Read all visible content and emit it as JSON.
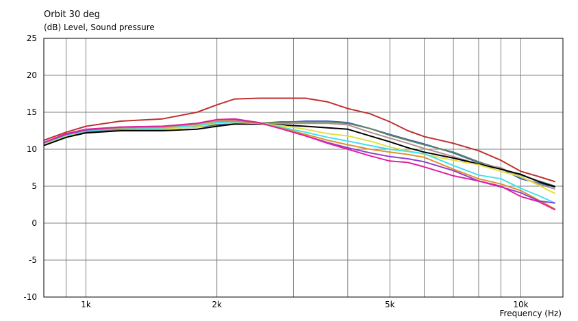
{
  "chart_data": {
    "type": "line",
    "title": "Orbit 30 deg",
    "ylabel": "(dB)  Level, Sound pressure",
    "xlabel": "Frequency  (Hz)",
    "xscale": "log",
    "xlim": [
      800,
      12500
    ],
    "ylim": [
      -10,
      25
    ],
    "grid": true,
    "y_ticks": [
      {
        "value": -10,
        "label": "-10"
      },
      {
        "value": -5,
        "label": "-5"
      },
      {
        "value": 0,
        "label": "0"
      },
      {
        "value": 5,
        "label": "5"
      },
      {
        "value": 10,
        "label": "10"
      },
      {
        "value": 15,
        "label": "15"
      },
      {
        "value": 20,
        "label": "20"
      },
      {
        "value": 25,
        "label": "25"
      }
    ],
    "x_ticks": [
      {
        "value": 1000,
        "label": "1k"
      },
      {
        "value": 2000,
        "label": "2k"
      },
      {
        "value": 5000,
        "label": "5k"
      },
      {
        "value": 10000,
        "label": "10k"
      }
    ],
    "x": [
      800,
      900,
      1000,
      1200,
      1500,
      1800,
      2000,
      2200,
      2500,
      2800,
      3200,
      3600,
      4000,
      4500,
      5000,
      5500,
      6000,
      7000,
      8000,
      9000,
      10000,
      11000,
      12000
    ],
    "series": [
      {
        "color": "#c03030",
        "values": [
          11.2,
          12.3,
          13.1,
          13.8,
          14.1,
          15.0,
          16.0,
          16.8,
          16.9,
          16.9,
          16.9,
          16.4,
          15.5,
          14.8,
          13.7,
          12.5,
          11.7,
          10.8,
          9.8,
          8.5,
          7.0,
          6.3,
          5.6
        ]
      },
      {
        "color": "#3060c0",
        "values": [
          10.5,
          11.6,
          12.3,
          12.7,
          12.8,
          13.0,
          13.3,
          13.4,
          13.4,
          13.6,
          13.8,
          13.8,
          13.6,
          12.8,
          12.0,
          11.3,
          10.7,
          9.5,
          8.2,
          7.4,
          6.0,
          5.4,
          4.9
        ]
      },
      {
        "color": "#608060",
        "values": [
          10.8,
          11.8,
          12.4,
          12.7,
          12.7,
          13.1,
          13.4,
          13.6,
          13.5,
          13.7,
          13.7,
          13.7,
          13.5,
          12.8,
          11.9,
          11.2,
          10.6,
          9.6,
          8.3,
          7.3,
          6.5,
          5.7,
          5.0
        ]
      },
      {
        "color": "#b09090",
        "values": [
          10.9,
          11.9,
          12.5,
          12.8,
          12.8,
          13.2,
          13.5,
          13.5,
          13.4,
          13.5,
          13.5,
          13.5,
          13.3,
          12.3,
          11.5,
          10.8,
          10.1,
          9.0,
          8.0,
          7.5,
          6.2,
          5.3,
          4.6
        ]
      },
      {
        "color": "#000000",
        "values": [
          10.5,
          11.6,
          12.2,
          12.5,
          12.5,
          12.7,
          13.1,
          13.4,
          13.4,
          13.3,
          13.1,
          12.9,
          12.7,
          11.8,
          11.0,
          10.2,
          9.6,
          8.8,
          8.0,
          7.3,
          6.6,
          5.6,
          4.9
        ]
      },
      {
        "color": "#e0e040",
        "values": [
          10.7,
          11.8,
          12.5,
          12.8,
          12.8,
          13.0,
          13.5,
          13.6,
          13.5,
          13.2,
          12.7,
          12.1,
          11.8,
          11.1,
          10.3,
          9.8,
          9.3,
          8.5,
          7.9,
          7.0,
          6.3,
          5.1,
          4.0
        ]
      },
      {
        "color": "#40e0f0",
        "values": [
          10.8,
          11.9,
          12.5,
          12.8,
          12.9,
          13.2,
          13.6,
          13.7,
          13.5,
          13.0,
          12.3,
          11.6,
          11.1,
          10.5,
          10.0,
          9.7,
          9.4,
          7.8,
          6.5,
          6.0,
          4.7,
          3.7,
          2.7
        ]
      },
      {
        "color": "#e09030",
        "values": [
          10.9,
          12.0,
          12.6,
          12.9,
          13.0,
          13.4,
          13.8,
          13.8,
          13.5,
          12.9,
          12.0,
          11.2,
          10.6,
          10.0,
          9.6,
          9.3,
          8.9,
          7.3,
          6.0,
          5.3,
          4.4,
          3.1,
          1.9
        ]
      },
      {
        "color": "#9040d0",
        "values": [
          10.9,
          12.0,
          12.6,
          13.0,
          13.1,
          13.5,
          14.0,
          14.0,
          13.6,
          12.8,
          11.8,
          10.9,
          10.2,
          9.5,
          9.0,
          8.7,
          8.3,
          7.1,
          5.7,
          4.9,
          4.1,
          3.0,
          2.7
        ]
      },
      {
        "color": "#e020a0",
        "values": [
          10.9,
          12.1,
          12.7,
          13.0,
          13.1,
          13.5,
          14.0,
          14.1,
          13.6,
          12.8,
          11.8,
          10.8,
          10.0,
          9.1,
          8.4,
          8.2,
          7.6,
          6.4,
          5.7,
          5.0,
          3.6,
          2.9,
          1.8
        ]
      }
    ]
  }
}
